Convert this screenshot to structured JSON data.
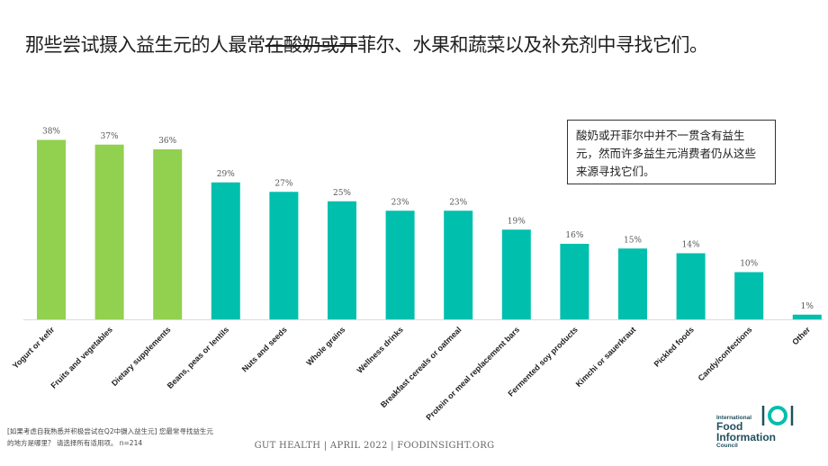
{
  "slide": {
    "title_before": "那些尝试摄入益生元的人最常",
    "title_strike": "在酸奶或开",
    "title_after": "菲尔、水果和蔬菜以及补充剂中寻找它们。",
    "callout": "酸奶或开菲尔中并不一贯含有益生元，然而许多益生元消费者仍从这些来源寻找它们。",
    "footnote": "[如果考虑自我熟悉并积极尝试在Q2中摄入益生元] 您最常寻找益生元的地方是哪里？ 请选择所有适用项。 n=214",
    "footer": "GUT HEALTH | APRIL 2022 | FOODINSIGHT.ORG",
    "logo": {
      "line1": "International",
      "line2": "Food",
      "line3": "Information",
      "line4": "Council"
    }
  },
  "colors": {
    "highlight": "#92d050",
    "base": "#00bfad",
    "logo": "#1f4f5f"
  },
  "chart_data": {
    "type": "bar",
    "categories": [
      "Yogurt or kefir",
      "Fruits and vegetables",
      "Dietary supplements",
      "Beans, peas or lentils",
      "Nuts and seeds",
      "Whole grains",
      "Wellness drinks",
      "Breakfast cereals or oatmeal",
      "Protein or meal replacement bars",
      "Fermented soy products",
      "Kimchi or sauerkraut",
      "Pickled foods",
      "Candy/confections",
      "Other"
    ],
    "values": [
      38,
      37,
      36,
      29,
      27,
      25,
      23,
      23,
      19,
      16,
      15,
      14,
      10,
      1
    ],
    "value_labels": [
      "38%",
      "37%",
      "36%",
      "29%",
      "27%",
      "25%",
      "23%",
      "23%",
      "19%",
      "16%",
      "15%",
      "14%",
      "10%",
      "1%"
    ],
    "highlighted": [
      0,
      1,
      2
    ],
    "ylim": [
      0,
      40
    ]
  }
}
